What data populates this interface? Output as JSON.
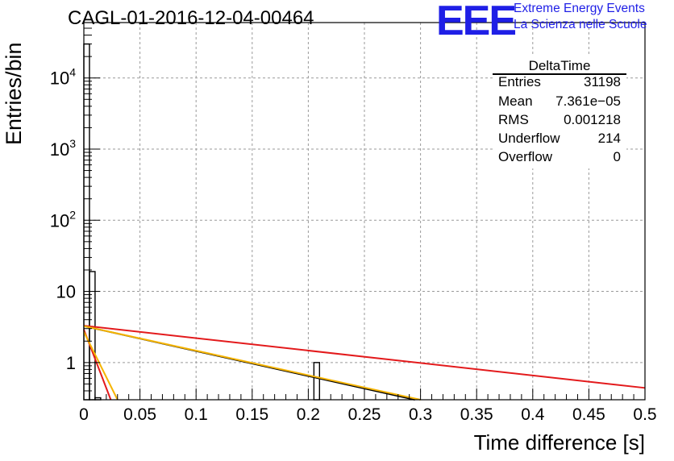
{
  "header": {
    "title": "CAGL-01-2016-12-04-00464",
    "logo_text": "EEE",
    "logo_line1": "Extreme Energy Events",
    "logo_line2": "La Scienza nelle Scuole"
  },
  "stats_box": {
    "name": "DeltaTime",
    "rows": [
      {
        "label": "Entries",
        "value": "31198"
      },
      {
        "label": "Mean",
        "value": "7.361e−05"
      },
      {
        "label": "RMS",
        "value": "0.001218"
      },
      {
        "label": "Underflow",
        "value": "214"
      },
      {
        "label": "Overflow",
        "value": "0"
      }
    ]
  },
  "chart_data": {
    "type": "bar",
    "title": "CAGL-01-2016-12-04-00464",
    "xlabel": "Time difference [s]",
    "ylabel": "Entries/bin",
    "xlim": [
      0,
      0.5
    ],
    "ylim": [
      0.3,
      60000
    ],
    "yscale": "log",
    "grid": true,
    "x_ticks": [
      "0",
      "0.05",
      "0.1",
      "0.15",
      "0.2",
      "0.25",
      "0.3",
      "0.35",
      "0.4",
      "0.45",
      "0.5"
    ],
    "y_ticks": [
      {
        "value": 1,
        "base": "1",
        "exp": ""
      },
      {
        "value": 10,
        "base": "10",
        "exp": ""
      },
      {
        "value": 100,
        "base": "10",
        "exp": "2"
      },
      {
        "value": 1000,
        "base": "10",
        "exp": "3"
      },
      {
        "value": 10000,
        "base": "10",
        "exp": "4"
      }
    ],
    "histogram": {
      "bin_width": 0.005,
      "bins": [
        {
          "x": 0.0,
          "value": 30000
        },
        {
          "x": 0.005,
          "value": 19
        },
        {
          "x": 0.01,
          "value": 0.32
        },
        {
          "x": 0.205,
          "value": 1
        }
      ]
    },
    "fits": [
      {
        "color": "#e31a1c",
        "x": [
          0.0,
          0.5
        ],
        "y": [
          3.3,
          0.44
        ]
      },
      {
        "color": "#000000",
        "x": [
          0.0,
          0.295
        ],
        "y": [
          3.25,
          0.3
        ]
      },
      {
        "color": "#f5b400",
        "x": [
          0.0,
          0.3
        ],
        "y": [
          3.25,
          0.3
        ]
      },
      {
        "color": "#e31a1c",
        "x": [
          0.0,
          0.024
        ],
        "y": [
          2.9,
          0.3
        ]
      },
      {
        "color": "#f5b400",
        "x": [
          0.0,
          0.03
        ],
        "y": [
          2.7,
          0.3
        ]
      }
    ]
  }
}
